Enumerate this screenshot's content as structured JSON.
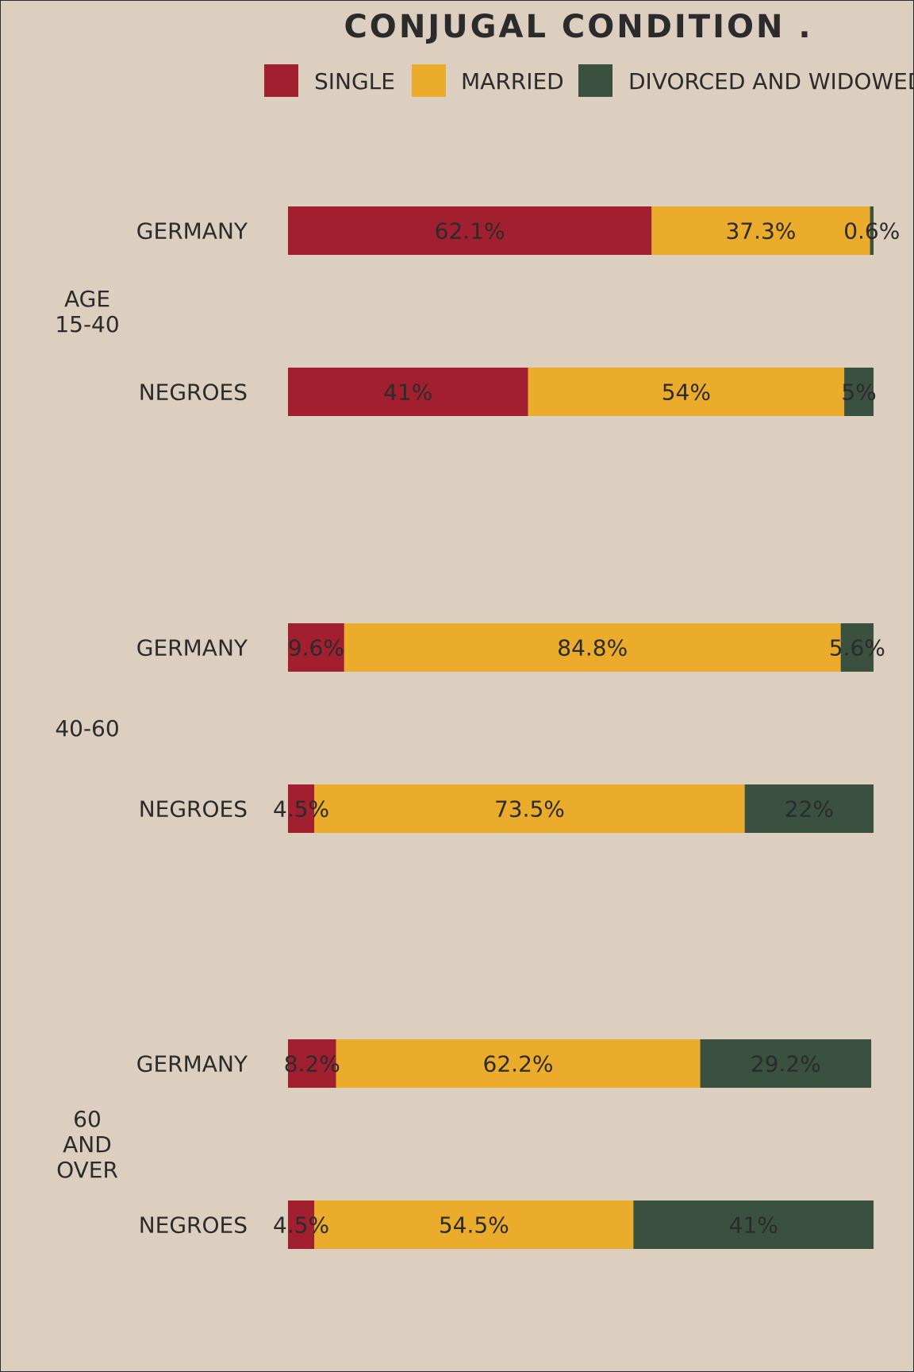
{
  "chart_data": {
    "type": "bar",
    "orientation": "horizontal",
    "stacked": true,
    "title": "CONJUGAL CONDITION .",
    "legend_position": "top",
    "series": [
      {
        "name": "SINGLE",
        "color": "#a21f30"
      },
      {
        "name": "MARRIED",
        "color": "#ebab2b"
      },
      {
        "name": "DIVORCED AND WIDOWED",
        "color": "#3a5140"
      }
    ],
    "groups": [
      {
        "label_lines": [
          "AGE",
          "15-40"
        ],
        "bars": [
          {
            "category": "GERMANY",
            "values": [
              62.1,
              37.3,
              0.6
            ],
            "labels": [
              "62.1%",
              "37.3%",
              "0.6%"
            ]
          },
          {
            "category": "NEGROES",
            "values": [
              41,
              54,
              5
            ],
            "labels": [
              "41%",
              "54%",
              "5%"
            ]
          }
        ]
      },
      {
        "label_lines": [
          "40-60"
        ],
        "bars": [
          {
            "category": "GERMANY",
            "values": [
              9.6,
              84.8,
              5.6
            ],
            "labels": [
              "9.6%",
              "84.8%",
              "5.6%"
            ]
          },
          {
            "category": "NEGROES",
            "values": [
              4.5,
              73.5,
              22
            ],
            "labels": [
              "4.5%",
              "73.5%",
              "22%"
            ]
          }
        ]
      },
      {
        "label_lines": [
          "60",
          "AND",
          "OVER"
        ],
        "bars": [
          {
            "category": "GERMANY",
            "values": [
              8.2,
              62.2,
              29.2
            ],
            "labels": [
              "8.2%",
              "62.2%",
              "29.2%"
            ]
          },
          {
            "category": "NEGROES",
            "values": [
              4.5,
              54.5,
              41
            ],
            "labels": [
              "4.5%",
              "54.5%",
              "41%"
            ]
          }
        ]
      }
    ],
    "xlim": [
      0,
      100
    ]
  }
}
